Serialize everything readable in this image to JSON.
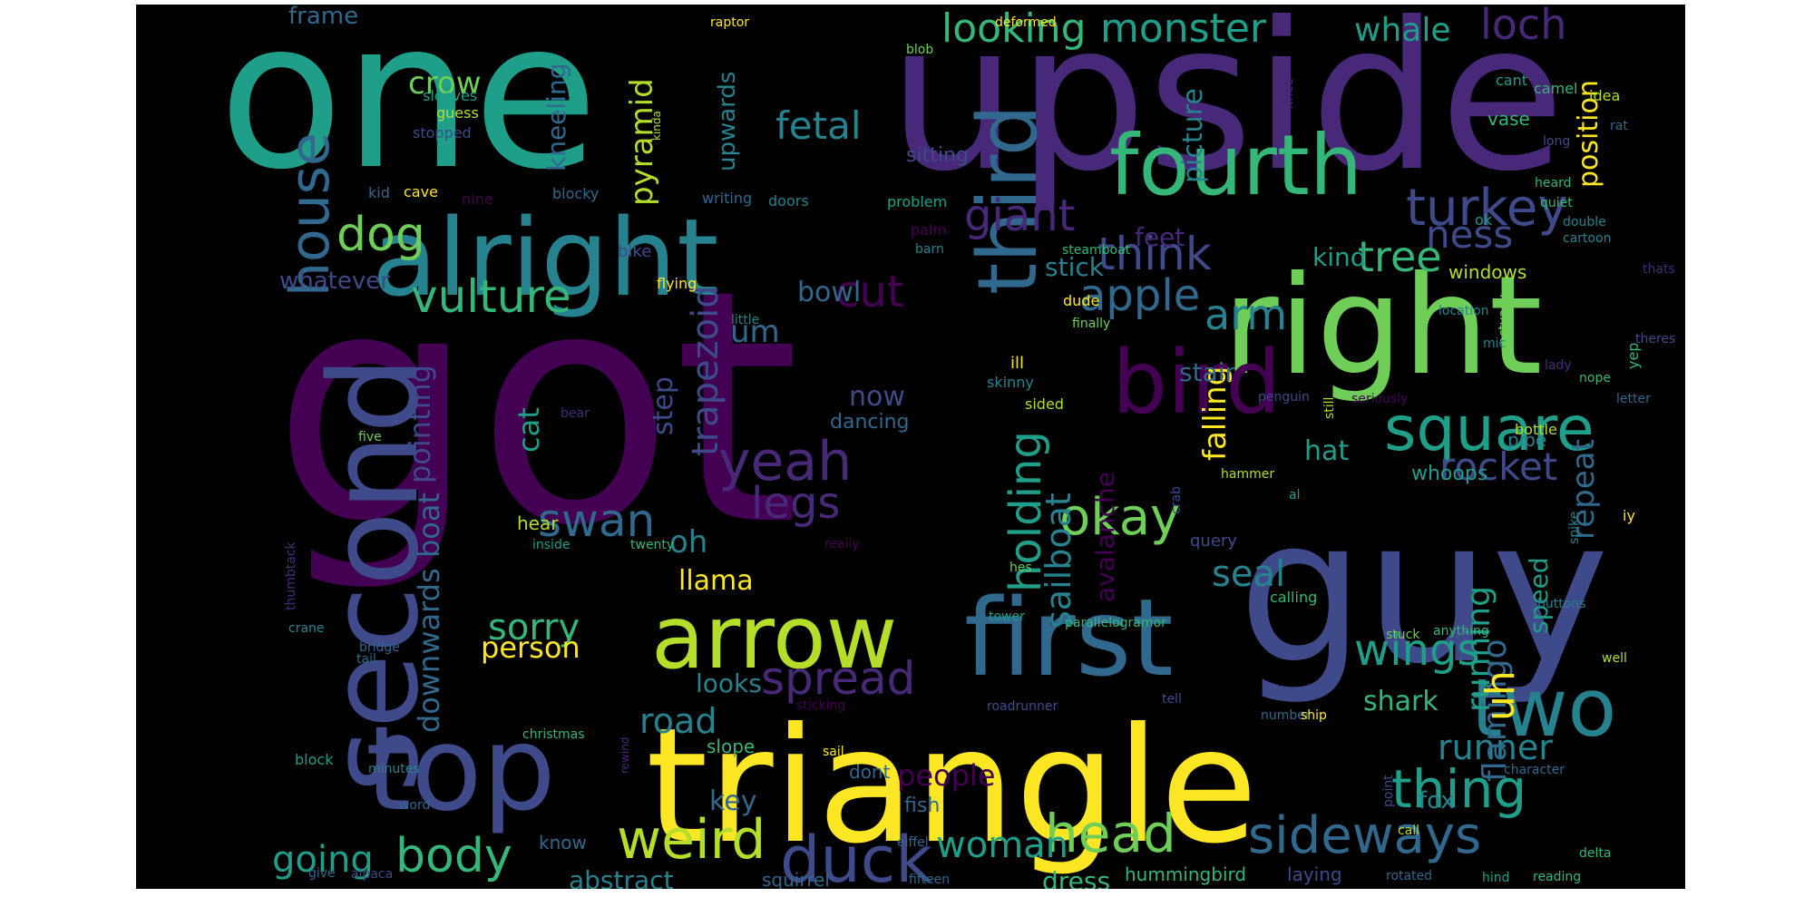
{
  "palette": [
    "#440154",
    "#482878",
    "#3e4a89",
    "#31688e",
    "#26828e",
    "#1f9e89",
    "#35b779",
    "#6ece58",
    "#b5de2b",
    "#fde725"
  ],
  "background": "#000000",
  "words": [
    {
      "t": "got",
      "c": 0
    },
    {
      "t": "one",
      "c": 5
    },
    {
      "t": "upside",
      "c": 1
    },
    {
      "t": "guy",
      "c": 2
    },
    {
      "t": "triangle",
      "c": 9
    },
    {
      "t": "right",
      "c": 7
    },
    {
      "t": "second",
      "c": 2
    },
    {
      "t": "alright",
      "c": 4
    },
    {
      "t": "first",
      "c": 3
    },
    {
      "t": "top",
      "c": 2
    },
    {
      "t": "third",
      "c": 3
    },
    {
      "t": "fourth",
      "c": 6
    },
    {
      "t": "bird",
      "c": 0
    },
    {
      "t": "arrow",
      "c": 8
    },
    {
      "t": "two",
      "c": 4
    },
    {
      "t": "square",
      "c": 5
    },
    {
      "t": "house",
      "c": 3
    },
    {
      "t": "duck",
      "c": 2
    },
    {
      "t": "weird",
      "c": 8
    },
    {
      "t": "head",
      "c": 7
    },
    {
      "t": "sideways",
      "c": 3
    },
    {
      "t": "thing",
      "c": 5
    },
    {
      "t": "yeah",
      "c": 1
    },
    {
      "t": "body",
      "c": 6
    },
    {
      "t": "turkey",
      "c": 2
    },
    {
      "t": "looking",
      "c": 6
    },
    {
      "t": "monster",
      "c": 5
    },
    {
      "t": "okay",
      "c": 7
    },
    {
      "t": "holding",
      "c": 5
    },
    {
      "t": "vulture",
      "c": 6
    },
    {
      "t": "dog",
      "c": 7
    },
    {
      "t": "swan",
      "c": 3
    },
    {
      "t": "spread",
      "c": 1
    },
    {
      "t": "legs",
      "c": 1
    },
    {
      "t": "think",
      "c": 2
    },
    {
      "t": "giant",
      "c": 1
    },
    {
      "t": "apple",
      "c": 3
    },
    {
      "t": "tree",
      "c": 6
    },
    {
      "t": "loch",
      "c": 1
    },
    {
      "t": "whale",
      "c": 5
    },
    {
      "t": "cut",
      "c": 0
    },
    {
      "t": "fetal",
      "c": 4
    },
    {
      "t": "rocket",
      "c": 2
    },
    {
      "t": "wings",
      "c": 5
    },
    {
      "t": "ness",
      "c": 2
    },
    {
      "t": "woman",
      "c": 5
    },
    {
      "t": "arm",
      "c": 4
    },
    {
      "t": "seal",
      "c": 4
    },
    {
      "t": "sorry",
      "c": 6
    },
    {
      "t": "road",
      "c": 4
    },
    {
      "t": "runner",
      "c": 4
    },
    {
      "t": "running",
      "c": 5
    },
    {
      "t": "flamingo",
      "c": 3
    },
    {
      "t": "crow",
      "c": 7
    },
    {
      "t": "pyramid",
      "c": 8
    },
    {
      "t": "kneeling",
      "c": 3
    },
    {
      "t": "upwards",
      "c": 4
    },
    {
      "t": "trapezoid",
      "c": 2
    },
    {
      "t": "pointing",
      "c": 2
    },
    {
      "t": "boat",
      "c": 3
    },
    {
      "t": "downwards",
      "c": 3
    },
    {
      "t": "going",
      "c": 5
    },
    {
      "t": "sailboat",
      "c": 4
    },
    {
      "t": "avalanche",
      "c": 0
    },
    {
      "t": "falling",
      "c": 9
    },
    {
      "t": "repeat",
      "c": 3
    },
    {
      "t": "speed",
      "c": 5
    },
    {
      "t": "uh",
      "c": 9
    },
    {
      "t": "position",
      "c": 9
    },
    {
      "t": "picture",
      "c": 4
    },
    {
      "t": "shark",
      "c": 6
    },
    {
      "t": "people",
      "c": 0
    },
    {
      "t": "key",
      "c": 3
    },
    {
      "t": "looks",
      "c": 4
    },
    {
      "t": "llama",
      "c": 9
    },
    {
      "t": "oh",
      "c": 4
    },
    {
      "t": "person",
      "c": 9
    },
    {
      "t": "abstract",
      "c": 4
    },
    {
      "t": "dress",
      "c": 6
    },
    {
      "t": "bowl",
      "c": 3
    },
    {
      "t": "stick",
      "c": 4
    },
    {
      "t": "feet",
      "c": 1
    },
    {
      "t": "kind",
      "c": 5
    },
    {
      "t": "now",
      "c": 2
    },
    {
      "t": "um",
      "c": 3
    },
    {
      "t": "step",
      "c": 2
    },
    {
      "t": "whatever",
      "c": 2
    },
    {
      "t": "frame",
      "c": 3
    },
    {
      "t": "cat",
      "c": 5
    },
    {
      "t": "stair",
      "c": 3
    },
    {
      "t": "hat",
      "c": 5
    },
    {
      "t": "windows",
      "c": 8
    },
    {
      "t": "whoops",
      "c": 5
    },
    {
      "t": "fox",
      "c": 4
    },
    {
      "t": "fish",
      "c": 3
    },
    {
      "t": "hummingbird",
      "c": 6
    },
    {
      "t": "laying",
      "c": 2
    },
    {
      "t": "squirrel",
      "c": 3
    },
    {
      "t": "know",
      "c": 3
    },
    {
      "t": "dont",
      "c": 3
    },
    {
      "t": "slope",
      "c": 6
    },
    {
      "t": "sitting",
      "c": 2
    },
    {
      "t": "dancing",
      "c": 3
    },
    {
      "t": "vase",
      "c": 6
    },
    {
      "t": "pipe",
      "c": 4
    },
    {
      "t": "bottle",
      "c": 8
    },
    {
      "t": "query",
      "c": 2
    },
    {
      "t": "hear",
      "c": 8
    },
    {
      "t": "guess",
      "c": 8
    },
    {
      "t": "sleeves",
      "c": 5
    },
    {
      "t": "stopped",
      "c": 2
    },
    {
      "t": "kid",
      "c": 3
    },
    {
      "t": "cave",
      "c": 9
    },
    {
      "t": "blocky",
      "c": 3
    },
    {
      "t": "nine",
      "c": 0
    },
    {
      "t": "writing",
      "c": 3
    },
    {
      "t": "doors",
      "c": 4
    },
    {
      "t": "problem",
      "c": 5
    },
    {
      "t": "palm",
      "c": 0
    },
    {
      "t": "barn",
      "c": 4
    },
    {
      "t": "bike",
      "c": 2
    },
    {
      "t": "flying",
      "c": 9
    },
    {
      "t": "little",
      "c": 4
    },
    {
      "t": "dude",
      "c": 9
    },
    {
      "t": "finally",
      "c": 7
    },
    {
      "t": "steamboat",
      "c": 6
    },
    {
      "t": "ill",
      "c": 9
    },
    {
      "t": "skinny",
      "c": 4
    },
    {
      "t": "sided",
      "c": 8
    },
    {
      "t": "raptor",
      "c": 9
    },
    {
      "t": "blob",
      "c": 7
    },
    {
      "t": "deformed",
      "c": 9
    },
    {
      "t": "camel",
      "c": 6
    },
    {
      "t": "cant",
      "c": 5
    },
    {
      "t": "idea",
      "c": 8
    },
    {
      "t": "rat",
      "c": 3
    },
    {
      "t": "long",
      "c": 2
    },
    {
      "t": "knee",
      "c": 1
    },
    {
      "t": "kinda",
      "c": 8
    },
    {
      "t": "heard",
      "c": 6
    },
    {
      "t": "quiet",
      "c": 6
    },
    {
      "t": "double",
      "c": 4
    },
    {
      "t": "cartoon",
      "c": 4
    },
    {
      "t": "ok",
      "c": 5
    },
    {
      "t": "location",
      "c": 4
    },
    {
      "t": "thats",
      "c": 1
    },
    {
      "t": "actually",
      "c": 7
    },
    {
      "t": "mic",
      "c": 4
    },
    {
      "t": "lady",
      "c": 1
    },
    {
      "t": "nope",
      "c": 6
    },
    {
      "t": "yep",
      "c": 6
    },
    {
      "t": "theres",
      "c": 2
    },
    {
      "t": "letter",
      "c": 3
    },
    {
      "t": "still",
      "c": 8
    },
    {
      "t": "seriously",
      "c": 0
    },
    {
      "t": "penguin",
      "c": 2
    },
    {
      "t": "bear",
      "c": 1
    },
    {
      "t": "five",
      "c": 7
    },
    {
      "t": "inside",
      "c": 5
    },
    {
      "t": "twenty",
      "c": 6
    },
    {
      "t": "really",
      "c": 0
    },
    {
      "t": "thumbtack",
      "c": 1
    },
    {
      "t": "crab",
      "c": 2
    },
    {
      "t": "hammer",
      "c": 8
    },
    {
      "t": "al",
      "c": 5
    },
    {
      "t": "spike",
      "c": 4
    },
    {
      "t": "iy",
      "c": 9
    },
    {
      "t": "hes",
      "c": 7
    },
    {
      "t": "tower",
      "c": 5
    },
    {
      "t": "parallelogramor",
      "c": 6
    },
    {
      "t": "calling",
      "c": 6
    },
    {
      "t": "stuck",
      "c": 7
    },
    {
      "t": "anything",
      "c": 6
    },
    {
      "t": "buttons",
      "c": 4
    },
    {
      "t": "well",
      "c": 8
    },
    {
      "t": "crane",
      "c": 4
    },
    {
      "t": "tail",
      "c": 3
    },
    {
      "t": "bridge",
      "c": 3
    },
    {
      "t": "christmas",
      "c": 6
    },
    {
      "t": "block",
      "c": 5
    },
    {
      "t": "minutes",
      "c": 4
    },
    {
      "t": "word",
      "c": 3
    },
    {
      "t": "give",
      "c": 3
    },
    {
      "t": "alpaca",
      "c": 2
    },
    {
      "t": "rewind",
      "c": 1
    },
    {
      "t": "sticking",
      "c": 0
    },
    {
      "t": "roadrunner",
      "c": 2
    },
    {
      "t": "sail",
      "c": 9
    },
    {
      "t": "eiffel",
      "c": 3
    },
    {
      "t": "fifteen",
      "c": 3
    },
    {
      "t": "tell",
      "c": 2
    },
    {
      "t": "number",
      "c": 3
    },
    {
      "t": "ship",
      "c": 9
    },
    {
      "t": "call",
      "c": 8
    },
    {
      "t": "rotated",
      "c": 3
    },
    {
      "t": "hind",
      "c": 5
    },
    {
      "t": "reading",
      "c": 6
    },
    {
      "t": "delta",
      "c": 6
    },
    {
      "t": "character",
      "c": 3
    },
    {
      "t": "point",
      "c": 2
    }
  ]
}
